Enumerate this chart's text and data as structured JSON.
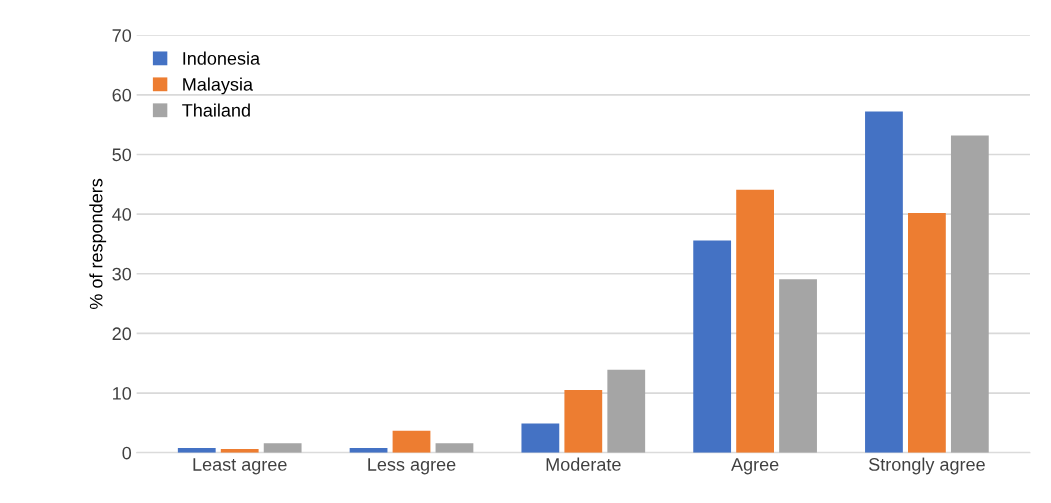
{
  "chart_data": {
    "type": "bar",
    "ylabel": "% of responders",
    "categories": [
      "Least agree",
      "Less agree",
      "Moderate",
      "Agree",
      "Strongly agree"
    ],
    "series": [
      {
        "name": "Indonesia",
        "color": "#4472c4",
        "values": [
          0.8,
          0.8,
          4.9,
          35.6,
          57.2
        ]
      },
      {
        "name": "Malaysia",
        "color": "#ed7d31",
        "values": [
          0.6,
          3.7,
          10.5,
          44.1,
          40.2
        ]
      },
      {
        "name": "Thailand",
        "color": "#a5a5a5",
        "values": [
          1.6,
          1.6,
          13.9,
          29.1,
          53.2
        ]
      }
    ],
    "ylim": [
      0,
      70
    ],
    "yticks": [
      0,
      10,
      20,
      30,
      40,
      50,
      60,
      70
    ],
    "grid": "y",
    "legend": "top left"
  }
}
